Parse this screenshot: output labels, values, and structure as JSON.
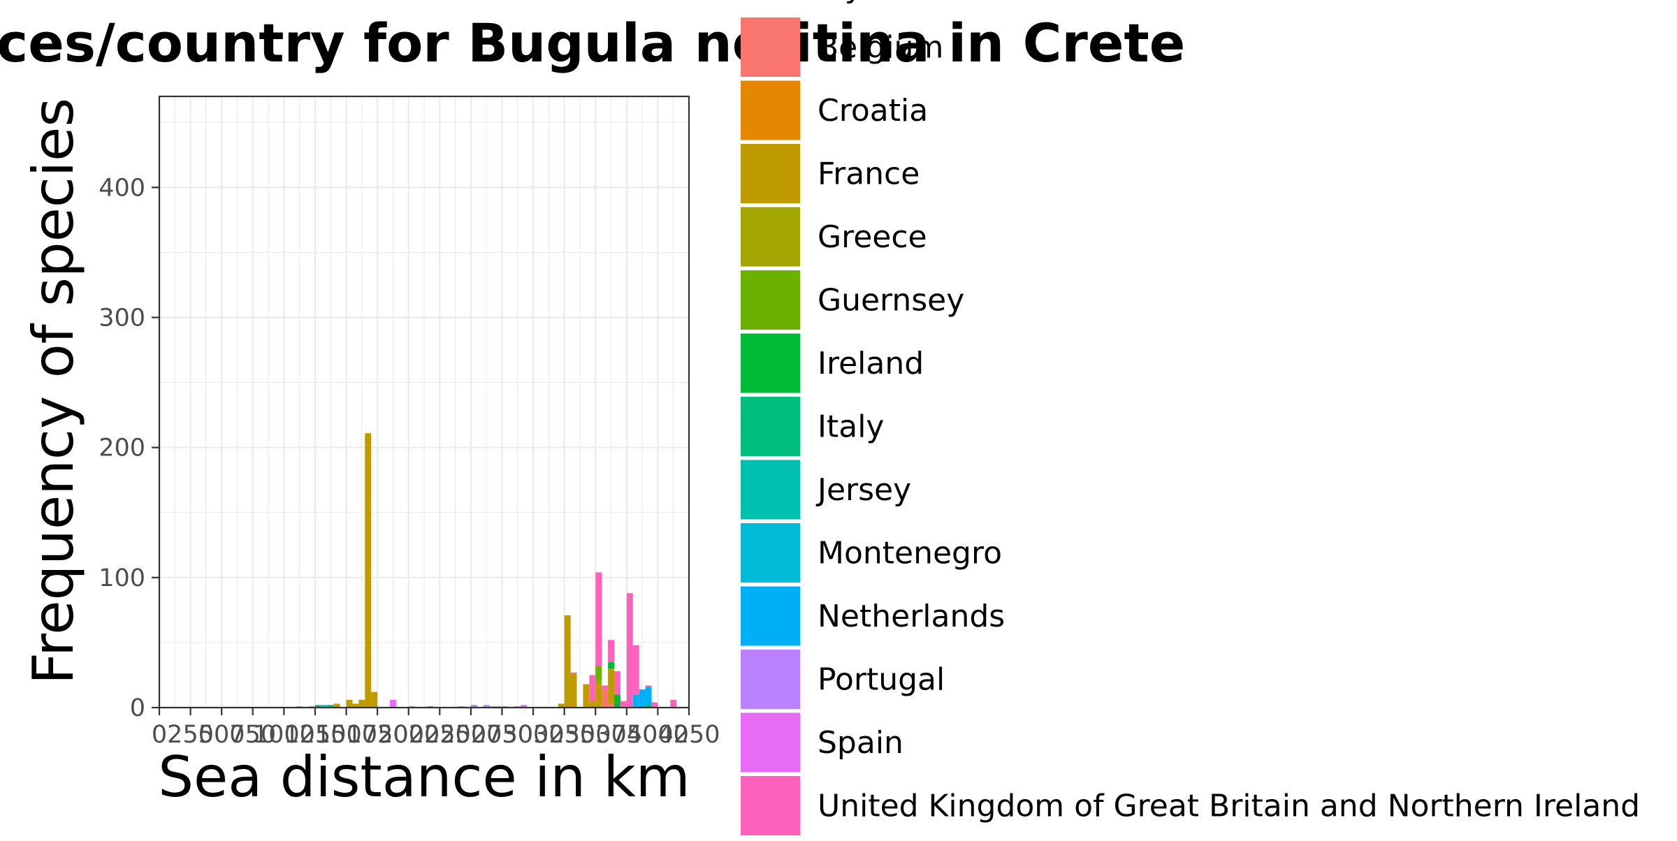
{
  "chart_data": {
    "type": "bar",
    "title": "Sea distances/country for Bugula neritina in Crete",
    "xlabel": "Sea distance in km",
    "ylabel": "Frequency of species",
    "xlim": [
      0,
      4250
    ],
    "ylim": [
      0,
      470
    ],
    "x_ticks": [
      0,
      250,
      500,
      750,
      1000,
      1250,
      1500,
      1750,
      2000,
      2250,
      2500,
      2750,
      3000,
      3250,
      3500,
      3750,
      4000,
      4250
    ],
    "x_tick_labels": [
      "0",
      "250",
      "500",
      "750",
      "1000",
      "1250",
      "1500",
      "1750",
      "2000",
      "2250",
      "2500",
      "2750",
      "3000",
      "3250",
      "3500",
      "3750",
      "4000",
      "4250"
    ],
    "y_ticks": [
      0,
      100,
      200,
      300,
      400
    ],
    "y_tick_labels": [
      "0",
      "100",
      "200",
      "300",
      "400"
    ],
    "grid": true,
    "stacked": true,
    "bin_width": 50,
    "legend_position": "right",
    "legend_title": "Country",
    "series": [
      {
        "name": "Belgium",
        "color": "#F8766D",
        "points": [
          [
            3575,
            12
          ],
          [
            3625,
            3
          ]
        ]
      },
      {
        "name": "Croatia",
        "color": "#E58700",
        "points": [
          [
            2025,
            1
          ],
          [
            3575,
            1
          ]
        ]
      },
      {
        "name": "France",
        "color": "#C09B00",
        "points": [
          [
            1125,
            1
          ],
          [
            1225,
            1
          ],
          [
            1325,
            1
          ],
          [
            1425,
            3
          ],
          [
            1525,
            6
          ],
          [
            1575,
            3
          ],
          [
            1625,
            6
          ],
          [
            1675,
            211
          ],
          [
            1725,
            12
          ],
          [
            3225,
            3
          ],
          [
            3275,
            71
          ],
          [
            3325,
            26
          ],
          [
            3425,
            18
          ],
          [
            3475,
            5
          ],
          [
            3525,
            18
          ],
          [
            3625,
            27
          ]
        ]
      },
      {
        "name": "Greece",
        "color": "#A3A500",
        "points": [
          [
            3525,
            2
          ]
        ]
      },
      {
        "name": "Guernsey",
        "color": "#6BB100",
        "points": [
          [
            3525,
            12
          ]
        ]
      },
      {
        "name": "Ireland",
        "color": "#00BA38",
        "points": [
          [
            3625,
            5
          ],
          [
            3675,
            10
          ],
          [
            3925,
            2
          ]
        ]
      },
      {
        "name": "Italy",
        "color": "#00BF7D",
        "points": [
          [
            1275,
            2
          ],
          [
            1375,
            2
          ],
          [
            2525,
            1
          ]
        ]
      },
      {
        "name": "Jersey",
        "color": "#00C0AF",
        "points": [
          [
            1325,
            1
          ]
        ]
      },
      {
        "name": "Montenegro",
        "color": "#00BCD8",
        "points": [
          [
            2175,
            1
          ]
        ]
      },
      {
        "name": "Netherlands",
        "color": "#00B0F6",
        "points": [
          [
            3825,
            10
          ],
          [
            3875,
            14
          ],
          [
            3925,
            14
          ]
        ]
      },
      {
        "name": "Portugal",
        "color": "#B983FF",
        "points": [
          [
            2425,
            1
          ],
          [
            2525,
            1
          ],
          [
            2625,
            2
          ],
          [
            2725,
            1
          ],
          [
            2875,
            1
          ]
        ]
      },
      {
        "name": "Spain",
        "color": "#E76BF3",
        "points": [
          [
            1875,
            6
          ],
          [
            2675,
            1
          ],
          [
            2775,
            1
          ],
          [
            2925,
            2
          ]
        ]
      },
      {
        "name": "United Kingdom of Great Britain and Northern Ireland",
        "color": "#FF62BC",
        "points": [
          [
            3325,
            1
          ],
          [
            3475,
            20
          ],
          [
            3525,
            72
          ],
          [
            3575,
            4
          ],
          [
            3625,
            17
          ],
          [
            3675,
            18
          ],
          [
            3725,
            5
          ],
          [
            3775,
            88
          ],
          [
            3825,
            38
          ],
          [
            3925,
            1
          ],
          [
            3975,
            4
          ],
          [
            4125,
            6
          ]
        ]
      }
    ]
  }
}
